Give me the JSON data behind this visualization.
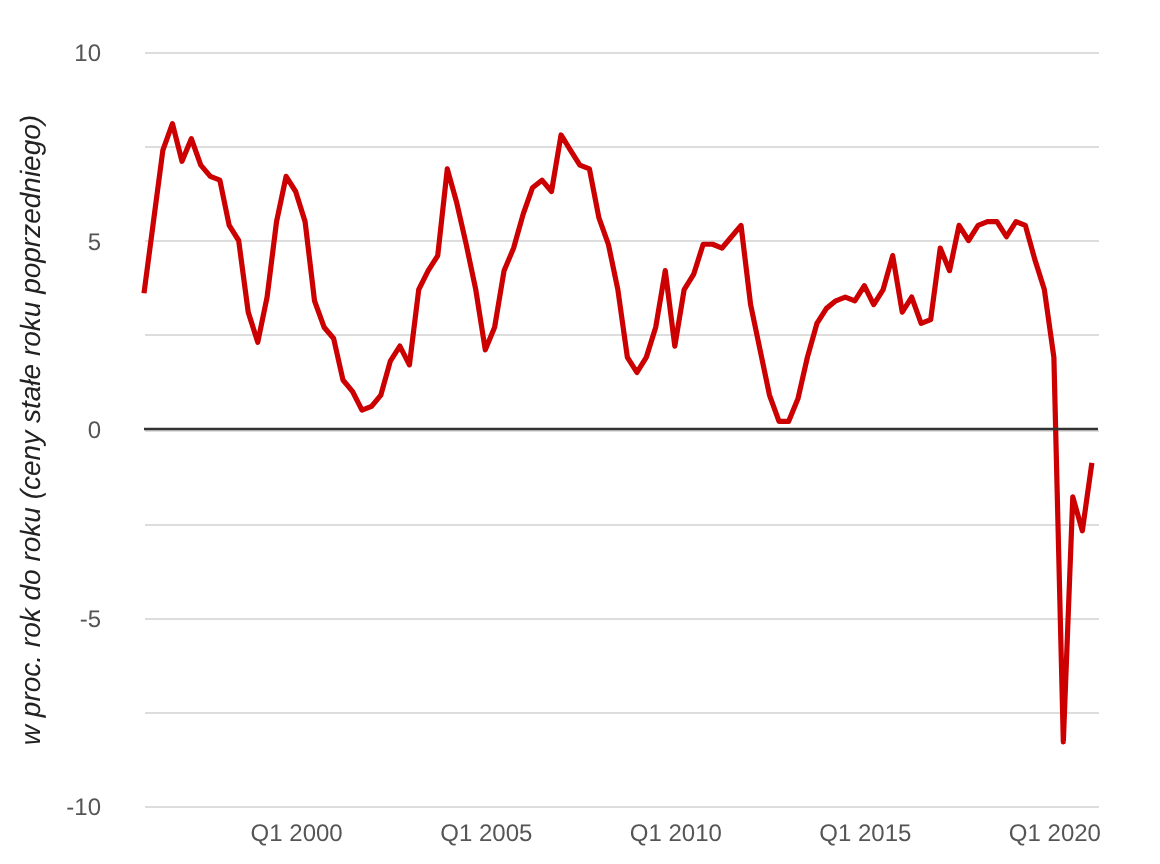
{
  "chart_data": {
    "type": "line",
    "ylabel": "w proc. rok do roku (ceny stałe roku poprzedniego)",
    "x": [
      "1996-01",
      "1996-04",
      "1996-07",
      "1996-10",
      "1997-01",
      "1997-04",
      "1997-07",
      "1997-10",
      "1998-01",
      "1998-04",
      "1998-07",
      "1998-10",
      "1999-01",
      "1999-04",
      "1999-07",
      "1999-10",
      "2000-01",
      "2000-04",
      "2000-07",
      "2000-10",
      "2001-01",
      "2001-04",
      "2001-07",
      "2001-10",
      "2002-01",
      "2002-04",
      "2002-07",
      "2002-10",
      "2003-01",
      "2003-04",
      "2003-07",
      "2003-10",
      "2004-01",
      "2004-04",
      "2004-07",
      "2004-10",
      "2005-01",
      "2005-04",
      "2005-07",
      "2005-10",
      "2006-01",
      "2006-04",
      "2006-07",
      "2006-10",
      "2007-01",
      "2007-04",
      "2007-07",
      "2007-10",
      "2008-01",
      "2008-04",
      "2008-07",
      "2008-10",
      "2009-01",
      "2009-04",
      "2009-07",
      "2009-10",
      "2010-01",
      "2010-04",
      "2010-07",
      "2010-10",
      "2011-01",
      "2011-04",
      "2011-07",
      "2011-10",
      "2012-01",
      "2012-04",
      "2012-07",
      "2012-10",
      "2013-01",
      "2013-04",
      "2013-07",
      "2013-10",
      "2014-01",
      "2014-04",
      "2014-07",
      "2014-10",
      "2015-01",
      "2015-04",
      "2015-07",
      "2015-10",
      "2016-01",
      "2016-04",
      "2016-07",
      "2016-10",
      "2017-01",
      "2017-04",
      "2017-07",
      "2017-10",
      "2018-01",
      "2018-04",
      "2018-07",
      "2018-10",
      "2019-01",
      "2019-04",
      "2019-07",
      "2019-10",
      "2020-01",
      "2020-04",
      "2020-07",
      "2020-10",
      "2021-01"
    ],
    "series": [
      {
        "color": "#cc0000",
        "values": [
          3.6,
          5.5,
          7.4,
          8.1,
          7.1,
          7.7,
          7.0,
          6.7,
          6.6,
          5.4,
          5.0,
          3.1,
          2.3,
          3.5,
          5.5,
          6.7,
          6.3,
          5.5,
          3.4,
          2.7,
          2.4,
          1.3,
          1.0,
          0.5,
          0.6,
          0.9,
          1.8,
          2.2,
          1.7,
          3.7,
          4.2,
          4.6,
          6.9,
          6.0,
          4.9,
          3.7,
          2.1,
          2.7,
          4.2,
          4.8,
          5.7,
          6.4,
          6.6,
          6.3,
          7.8,
          7.4,
          7.0,
          6.9,
          5.6,
          4.9,
          3.7,
          1.9,
          1.5,
          1.9,
          2.7,
          4.2,
          2.2,
          3.7,
          4.1,
          4.9,
          4.9,
          4.8,
          5.1,
          5.4,
          3.3,
          2.1,
          0.9,
          0.2,
          0.2,
          0.8,
          1.9,
          2.8,
          3.2,
          3.4,
          3.5,
          3.4,
          3.8,
          3.3,
          3.7,
          4.6,
          3.1,
          3.5,
          2.8,
          2.9,
          4.8,
          4.2,
          5.4,
          5.0,
          5.4,
          5.5,
          5.5,
          5.1,
          5.5,
          5.4,
          4.5,
          3.7,
          1.9,
          -8.3,
          -1.8,
          -2.7,
          -0.9
        ]
      }
    ],
    "xlim": [
      "1996-01",
      "2021-03"
    ],
    "xticks": [
      {
        "value": "2000-01",
        "label": "Q1 2000"
      },
      {
        "value": "2005-01",
        "label": "Q1 2005"
      },
      {
        "value": "2010-01",
        "label": "Q1 2010"
      },
      {
        "value": "2015-01",
        "label": "Q1 2015"
      },
      {
        "value": "2020-01",
        "label": "Q1 2020"
      }
    ],
    "ylim": [
      -10,
      10
    ],
    "yticks": [
      -10,
      {
        "value": -7.5,
        "label": null
      },
      -5,
      {
        "value": -2.5,
        "label": null
      },
      0,
      {
        "value": 2.5,
        "label": null
      },
      5,
      {
        "value": 7.5,
        "label": null
      },
      10
    ],
    "grid": "y",
    "line_style": "solid",
    "ref_lines": [
      {
        "axis": "y",
        "value": 0,
        "color": "#333333"
      }
    ]
  }
}
